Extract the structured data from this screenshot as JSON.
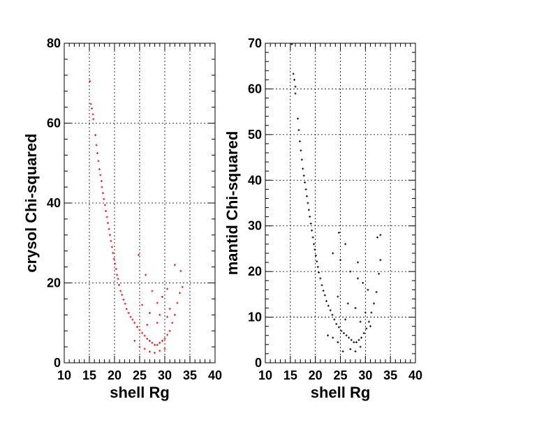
{
  "chart_data": [
    {
      "type": "scatter",
      "xlabel": "shell Rg",
      "ylabel": "crysol Chi-squared",
      "xlim": [
        10,
        40
      ],
      "ylim": [
        0,
        80
      ],
      "xticks": [
        10,
        15,
        20,
        25,
        30,
        35,
        40
      ],
      "yticks": [
        0,
        20,
        40,
        60,
        80
      ],
      "grid": true,
      "marker_color": "#ff0000",
      "series": [
        {
          "values_note": "points along a decreasing curve from x~15 to x~33",
          "points": [
            [
              15.1,
              70.5
            ],
            [
              15.3,
              64.8
            ],
            [
              15.5,
              63.7
            ],
            [
              15.7,
              62.2
            ],
            [
              15.8,
              61.0
            ],
            [
              16.2,
              57.0
            ],
            [
              16.4,
              54.5
            ],
            [
              16.6,
              52.5
            ],
            [
              16.8,
              50.5
            ],
            [
              17.0,
              48.5
            ],
            [
              17.2,
              47.0
            ],
            [
              17.4,
              45.5
            ],
            [
              17.5,
              44.0
            ],
            [
              17.7,
              42.5
            ],
            [
              17.9,
              41.0
            ],
            [
              18.1,
              39.5
            ],
            [
              18.3,
              38.0
            ],
            [
              18.5,
              36.5
            ],
            [
              18.7,
              35.0
            ],
            [
              18.9,
              33.5
            ],
            [
              19.1,
              32.0
            ],
            [
              19.3,
              30.5
            ],
            [
              19.5,
              29.0
            ],
            [
              19.7,
              27.5
            ],
            [
              19.9,
              26.0
            ],
            [
              20.1,
              24.8
            ],
            [
              20.3,
              23.5
            ],
            [
              20.5,
              22.0
            ],
            [
              20.7,
              21.0
            ],
            [
              20.9,
              19.5
            ],
            [
              21.2,
              18.0
            ],
            [
              21.5,
              17.0
            ],
            [
              21.8,
              15.8
            ],
            [
              22.1,
              14.8
            ],
            [
              22.4,
              13.5
            ],
            [
              22.8,
              12.5
            ],
            [
              23.2,
              11.5
            ],
            [
              23.6,
              10.8
            ],
            [
              24.0,
              10.0
            ],
            [
              24.5,
              9.0
            ],
            [
              25.0,
              8.2
            ],
            [
              25.5,
              7.5
            ],
            [
              26.0,
              6.8
            ],
            [
              26.5,
              6.0
            ],
            [
              27.0,
              5.5
            ],
            [
              27.5,
              5.0
            ],
            [
              28.0,
              4.5
            ],
            [
              28.5,
              4.5
            ],
            [
              29.0,
              5.0
            ],
            [
              29.5,
              5.5
            ],
            [
              30.0,
              6.0
            ],
            [
              30.5,
              7.0
            ],
            [
              31.0,
              8.0
            ],
            [
              31.5,
              10.0
            ],
            [
              32.0,
              12.0
            ],
            [
              32.5,
              15.0
            ],
            [
              33.0,
              17.5
            ],
            [
              33.5,
              19.0
            ],
            [
              33.2,
              23.0
            ],
            [
              32.0,
              24.5
            ],
            [
              24.8,
              27.0
            ],
            [
              26.2,
              22.0
            ],
            [
              27.5,
              18.0
            ],
            [
              28.5,
              15.0
            ],
            [
              29.5,
              16.5
            ],
            [
              30.5,
              18.5
            ],
            [
              31.0,
              13.5
            ],
            [
              29.0,
              12.0
            ],
            [
              27.0,
              12.5
            ],
            [
              25.5,
              14.5
            ],
            [
              26.0,
              3.5
            ],
            [
              27.0,
              2.8
            ],
            [
              28.0,
              2.5
            ],
            [
              29.0,
              3.0
            ],
            [
              30.0,
              3.5
            ],
            [
              24.0,
              5.5
            ],
            [
              25.0,
              4.0
            ],
            [
              26.5,
              9.5
            ],
            [
              28.5,
              10.0
            ],
            [
              30.5,
              11.5
            ]
          ]
        }
      ]
    },
    {
      "type": "scatter",
      "xlabel": "shell Rg",
      "ylabel": "mantid Chi-squared",
      "xlim": [
        10,
        40
      ],
      "ylim": [
        0,
        70
      ],
      "xticks": [
        10,
        15,
        20,
        25,
        30,
        35,
        40
      ],
      "yticks": [
        0,
        10,
        20,
        30,
        40,
        50,
        60,
        70
      ],
      "grid": true,
      "marker_color": "#000000",
      "series": [
        {
          "values_note": "points along a decreasing curve from x~15 to x~33",
          "points": [
            [
              15.3,
              69.8
            ],
            [
              15.6,
              63.3
            ],
            [
              15.8,
              62.0
            ],
            [
              16.0,
              60.5
            ],
            [
              16.0,
              59.0
            ],
            [
              16.5,
              53.5
            ],
            [
              16.7,
              51.0
            ],
            [
              16.9,
              48.5
            ],
            [
              17.1,
              46.5
            ],
            [
              17.3,
              44.5
            ],
            [
              17.5,
              42.5
            ],
            [
              17.7,
              41.0
            ],
            [
              17.9,
              39.5
            ],
            [
              18.1,
              38.0
            ],
            [
              18.3,
              36.5
            ],
            [
              18.5,
              35.0
            ],
            [
              18.7,
              33.5
            ],
            [
              18.9,
              32.0
            ],
            [
              19.1,
              30.5
            ],
            [
              19.3,
              29.0
            ],
            [
              19.5,
              27.5
            ],
            [
              19.7,
              26.0
            ],
            [
              19.9,
              24.8
            ],
            [
              20.1,
              23.5
            ],
            [
              20.3,
              22.2
            ],
            [
              20.5,
              21.0
            ],
            [
              20.7,
              19.8
            ],
            [
              21.0,
              18.5
            ],
            [
              21.3,
              17.0
            ],
            [
              21.6,
              15.8
            ],
            [
              21.9,
              14.8
            ],
            [
              22.2,
              13.5
            ],
            [
              22.6,
              12.5
            ],
            [
              23.0,
              11.5
            ],
            [
              23.4,
              10.5
            ],
            [
              23.8,
              9.5
            ],
            [
              24.2,
              8.5
            ],
            [
              24.7,
              7.8
            ],
            [
              25.2,
              7.0
            ],
            [
              25.7,
              6.5
            ],
            [
              26.2,
              6.0
            ],
            [
              26.7,
              5.5
            ],
            [
              27.2,
              5.0
            ],
            [
              27.7,
              4.5
            ],
            [
              28.2,
              4.5
            ],
            [
              28.7,
              5.0
            ],
            [
              29.2,
              5.5
            ],
            [
              29.7,
              6.5
            ],
            [
              30.2,
              7.5
            ],
            [
              30.7,
              9.0
            ],
            [
              31.2,
              11.0
            ],
            [
              31.7,
              13.0
            ],
            [
              32.2,
              15.5
            ],
            [
              32.7,
              19.5
            ],
            [
              33.0,
              22.5
            ],
            [
              32.4,
              27.5
            ],
            [
              33.0,
              28.0
            ],
            [
              24.7,
              28.5
            ],
            [
              26.0,
              26.0
            ],
            [
              25.0,
              22.5
            ],
            [
              27.0,
              20.0
            ],
            [
              28.5,
              18.5
            ],
            [
              29.5,
              17.5
            ],
            [
              30.5,
              16.0
            ],
            [
              28.5,
              22.0
            ],
            [
              23.5,
              24.0
            ],
            [
              26.5,
              13.0
            ],
            [
              28.0,
              12.0
            ],
            [
              30.0,
              11.0
            ],
            [
              24.5,
              14.5
            ],
            [
              25.5,
              2.5
            ],
            [
              27.0,
              3.0
            ],
            [
              28.0,
              2.5
            ],
            [
              29.0,
              3.5
            ],
            [
              23.5,
              5.5
            ],
            [
              24.5,
              4.5
            ],
            [
              26.0,
              9.5
            ],
            [
              29.0,
              9.0
            ],
            [
              31.0,
              8.0
            ],
            [
              22.5,
              6.0
            ]
          ]
        }
      ]
    }
  ]
}
